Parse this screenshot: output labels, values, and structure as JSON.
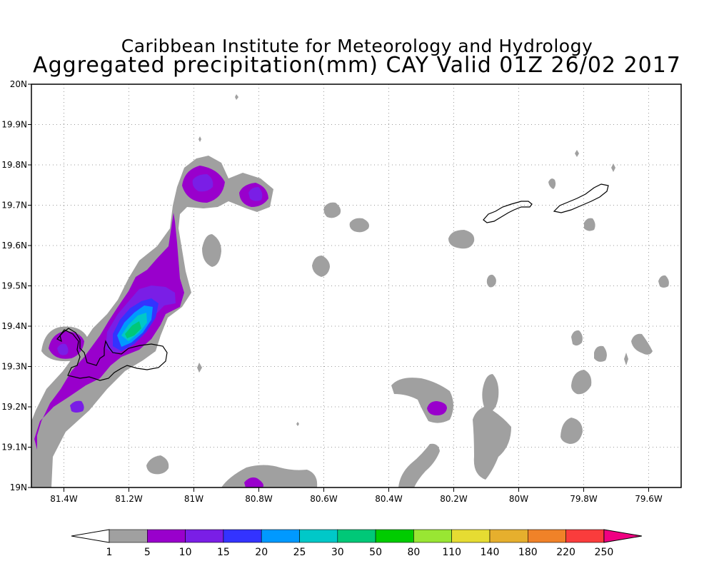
{
  "title": {
    "line1": "Caribbean Institute for Meteorology and Hydrology",
    "line2": "Aggregated precipitation(mm) CAY Valid 01Z 26/02 2017"
  },
  "map": {
    "lon_range": [
      -81.5,
      -79.5
    ],
    "lat_range": [
      19.0,
      20.0
    ],
    "grid": "dotted",
    "lon_ticks": [
      {
        "value": -81.4,
        "label": "81.4W"
      },
      {
        "value": -81.2,
        "label": "81.2W"
      },
      {
        "value": -81.0,
        "label": "81W"
      },
      {
        "value": -80.8,
        "label": "80.8W"
      },
      {
        "value": -80.6,
        "label": "80.6W"
      },
      {
        "value": -80.4,
        "label": "80.4W"
      },
      {
        "value": -80.2,
        "label": "80.2W"
      },
      {
        "value": -80.0,
        "label": "80W"
      },
      {
        "value": -79.8,
        "label": "79.8W"
      },
      {
        "value": -79.6,
        "label": "79.6W"
      }
    ],
    "lat_ticks": [
      {
        "value": 19.0,
        "label": "19N"
      },
      {
        "value": 19.1,
        "label": "19.1N"
      },
      {
        "value": 19.2,
        "label": "19.2N"
      },
      {
        "value": 19.3,
        "label": "19.3N"
      },
      {
        "value": 19.4,
        "label": "19.4N"
      },
      {
        "value": 19.5,
        "label": "19.5N"
      },
      {
        "value": 19.6,
        "label": "19.6N"
      },
      {
        "value": 19.7,
        "label": "19.7N"
      },
      {
        "value": 19.8,
        "label": "19.8N"
      },
      {
        "value": 19.9,
        "label": "19.9N"
      },
      {
        "value": 20.0,
        "label": "20N"
      }
    ]
  },
  "colorbar": {
    "levels": [
      "1",
      "5",
      "10",
      "15",
      "20",
      "25",
      "30",
      "50",
      "80",
      "110",
      "140",
      "180",
      "220",
      "250"
    ],
    "colors": [
      "#ffffff",
      "#a0a0a0",
      "#9900cc",
      "#7a1ee6",
      "#3333ff",
      "#0099ff",
      "#00c8c8",
      "#00c878",
      "#00cc00",
      "#99e633",
      "#e6dc32",
      "#e6af2d",
      "#f08228",
      "#fa3c3c",
      "#f00082"
    ]
  }
}
